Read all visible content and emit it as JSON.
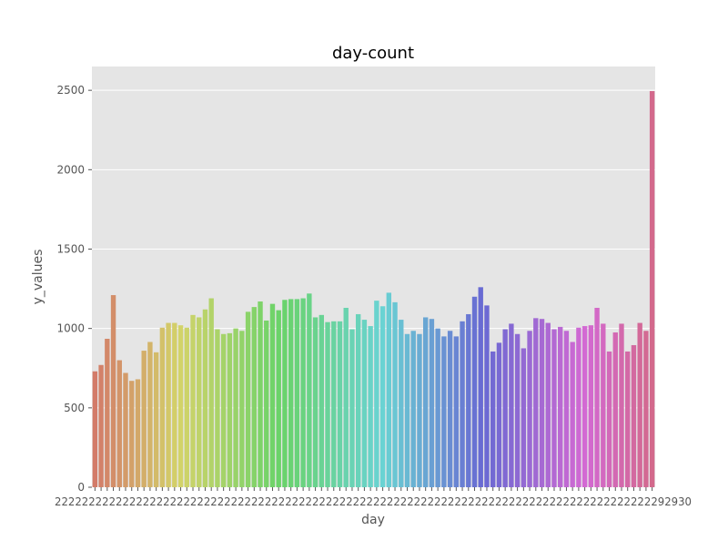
{
  "chart_data": {
    "type": "bar",
    "title": "day-count",
    "xlabel": "day",
    "ylabel": "y_values",
    "ylim": [
      0,
      2650
    ],
    "yticks": [
      0,
      500,
      1000,
      1500,
      2000,
      2500
    ],
    "grid": true,
    "legend": "none",
    "colors": {
      "plot_background": "#e5e5e5",
      "grid": "#ffffff",
      "text": "#555555"
    },
    "values": [
      730,
      770,
      935,
      1210,
      800,
      720,
      670,
      680,
      860,
      915,
      850,
      1005,
      1035,
      1035,
      1020,
      1005,
      1085,
      1070,
      1120,
      1190,
      995,
      965,
      970,
      1000,
      985,
      1105,
      1135,
      1170,
      1050,
      1155,
      1115,
      1180,
      1185,
      1185,
      1190,
      1220,
      1070,
      1085,
      1040,
      1045,
      1045,
      1130,
      995,
      1090,
      1055,
      1015,
      1175,
      1140,
      1225,
      1165,
      1055,
      965,
      985,
      965,
      1070,
      1060,
      1000,
      950,
      985,
      950,
      1045,
      1090,
      1200,
      1260,
      1145,
      855,
      910,
      995,
      1030,
      965,
      875,
      985,
      1065,
      1060,
      1035,
      995,
      1010,
      985,
      915,
      1005,
      1015,
      1020,
      1130,
      1030,
      855,
      975,
      1030,
      855,
      895,
      1035,
      985,
      2495
    ],
    "x_tick_labels_visible": "2021... 2030",
    "x_tick_overlap_text": "2222222222222222222222222222222222222222222222222222222222222222222222222222222222222222292930"
  }
}
